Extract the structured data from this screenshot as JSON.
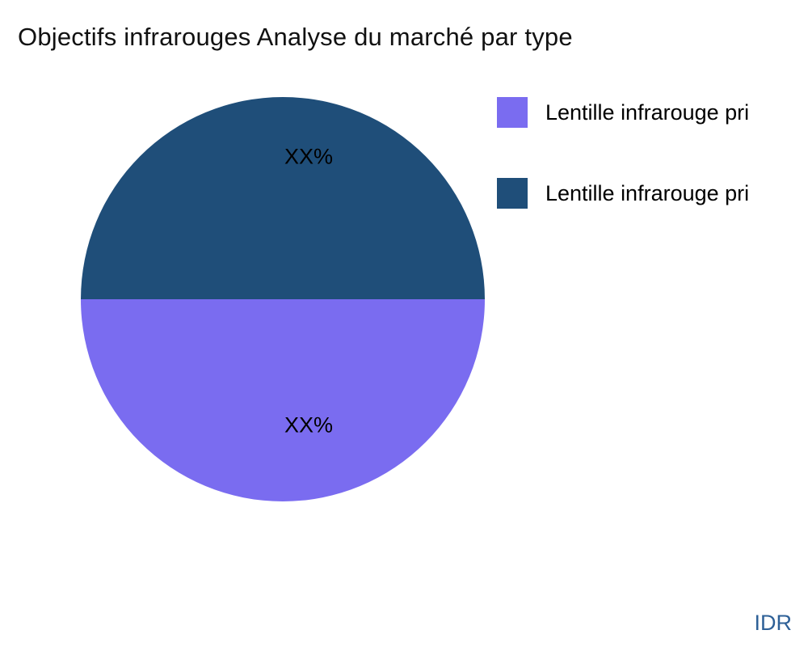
{
  "title": "Objectifs infrarouges Analyse du marché par type",
  "watermark": "IDR",
  "chart_data": {
    "type": "pie",
    "title": "Objectifs infrarouges Analyse du marché par type",
    "legend_position": "right",
    "slices": [
      {
        "label": "Lentille infrarouge pri",
        "value": 50,
        "display": "XX%",
        "color": "#7a6cf0",
        "position": "bottom"
      },
      {
        "label": "Lentille infrarouge pri",
        "value": 50,
        "display": "XX%",
        "color": "#1f4e79",
        "position": "top"
      }
    ]
  },
  "legend": {
    "items": [
      {
        "label": "Lentille infrarouge pri",
        "color": "#7a6cf0"
      },
      {
        "label": "Lentille infrarouge pri",
        "color": "#1f4e79"
      }
    ]
  }
}
